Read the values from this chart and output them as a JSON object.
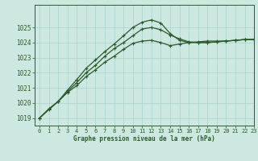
{
  "xlabel": "Graphe pression niveau de la mer (hPa)",
  "xlim": [
    -0.5,
    23
  ],
  "ylim": [
    1018.5,
    1026.5
  ],
  "yticks": [
    1019,
    1020,
    1021,
    1022,
    1023,
    1024,
    1025
  ],
  "xticks": [
    0,
    1,
    2,
    3,
    4,
    5,
    6,
    7,
    8,
    9,
    10,
    11,
    12,
    13,
    14,
    15,
    16,
    17,
    18,
    19,
    20,
    21,
    22,
    23
  ],
  "bg_color": "#cce8e0",
  "grid_color": "#a8d4cc",
  "line_color": "#2d5a2d",
  "line1": [
    1019.0,
    1019.6,
    1020.1,
    1020.7,
    1021.15,
    1021.75,
    1022.2,
    1022.7,
    1023.1,
    1023.55,
    1023.95,
    1024.1,
    1024.15,
    1024.0,
    1023.8,
    1023.9,
    1024.0,
    1024.05,
    1024.1,
    1024.1,
    1024.1,
    1024.15,
    1024.2,
    1024.2
  ],
  "line2": [
    1019.0,
    1019.6,
    1020.1,
    1020.75,
    1021.35,
    1022.0,
    1022.5,
    1023.1,
    1023.6,
    1024.0,
    1024.45,
    1024.9,
    1025.0,
    1024.85,
    1024.5,
    1024.25,
    1024.05,
    1024.0,
    1024.0,
    1024.05,
    1024.1,
    1024.15,
    1024.2,
    1024.2
  ],
  "line3": [
    1019.0,
    1019.55,
    1020.1,
    1020.85,
    1021.55,
    1022.3,
    1022.85,
    1023.4,
    1023.9,
    1024.45,
    1025.0,
    1025.35,
    1025.5,
    1025.3,
    1024.6,
    1024.15,
    1024.0,
    1024.0,
    1024.0,
    1024.05,
    1024.1,
    1024.15,
    1024.2,
    1024.2
  ]
}
